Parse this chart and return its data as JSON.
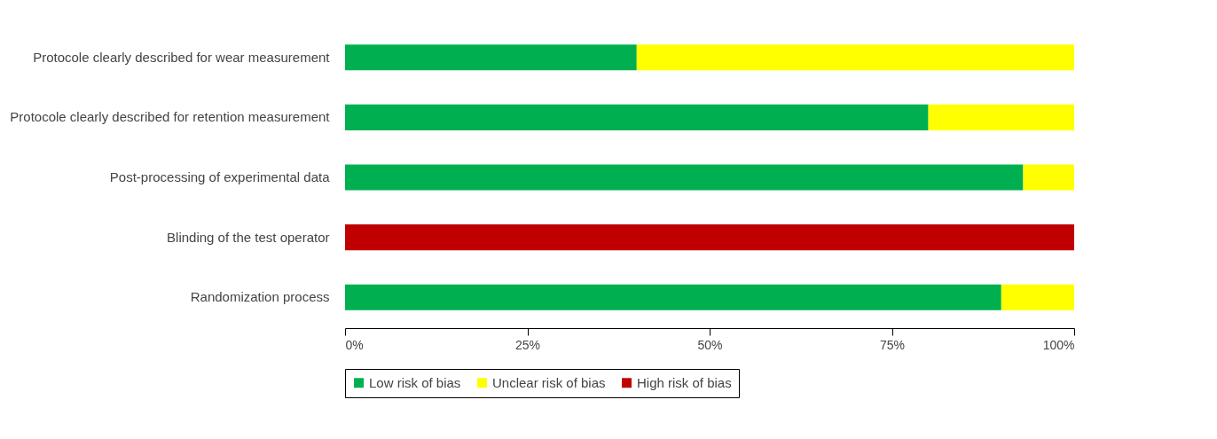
{
  "chart_data": {
    "type": "bar",
    "orientation": "horizontal",
    "stacked": true,
    "legend": "bottom",
    "grid": false,
    "categories": [
      "Protocole clearly described for wear measurement",
      "Protocole clearly described for retention measurement",
      "Post-processing of experimental data",
      "Blinding of the test operator",
      "Randomization process"
    ],
    "series": [
      {
        "name": "Low risk of bias",
        "color": "#00b050",
        "values": [
          40,
          80,
          93,
          0,
          90
        ]
      },
      {
        "name": "Unclear risk of bias",
        "color": "#ffff00",
        "values": [
          60,
          20,
          7,
          0,
          10
        ]
      },
      {
        "name": "High risk of bias",
        "color": "#c00000",
        "values": [
          0,
          0,
          0,
          100,
          0
        ]
      }
    ],
    "xlim": [
      0,
      100
    ],
    "xticks": [
      {
        "value": 0,
        "label": "0%"
      },
      {
        "value": 25,
        "label": "25%"
      },
      {
        "value": 50,
        "label": "50%"
      },
      {
        "value": 75,
        "label": "75%"
      },
      {
        "value": 100,
        "label": "100%"
      }
    ]
  }
}
